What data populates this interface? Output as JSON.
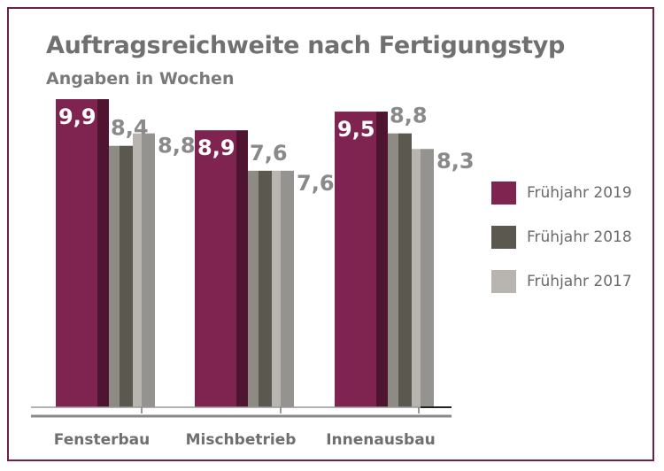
{
  "chart_data": {
    "type": "bar",
    "title": "Auftragsreichweite nach Fertigungstyp",
    "subtitle": "Angaben in Wochen",
    "categories": [
      "Fensterbau",
      "Mischbetrieb",
      "Innenausbau"
    ],
    "series": [
      {
        "name": "Frühjahr 2019",
        "values": [
          9.9,
          8.9,
          9.5
        ],
        "labels": [
          "9,9",
          "8,9",
          "9,5"
        ],
        "color": "#7f2450",
        "side_color": "#4f1430"
      },
      {
        "name": "Frühjahr 2018",
        "values": [
          8.4,
          7.6,
          8.8
        ],
        "labels": [
          "8,4",
          "7,6",
          "8,8"
        ],
        "color": "#5b5850",
        "side_color": "#8e8b84"
      },
      {
        "name": "Frühjahr 2017",
        "values": [
          8.8,
          7.6,
          8.3
        ],
        "labels": [
          "8,8",
          "7,6",
          "8,3"
        ],
        "color": "#b8b5b0",
        "side_color": "#959390"
      }
    ],
    "ylim": [
      0,
      9.9
    ],
    "legend_position": "right",
    "grid": false
  }
}
